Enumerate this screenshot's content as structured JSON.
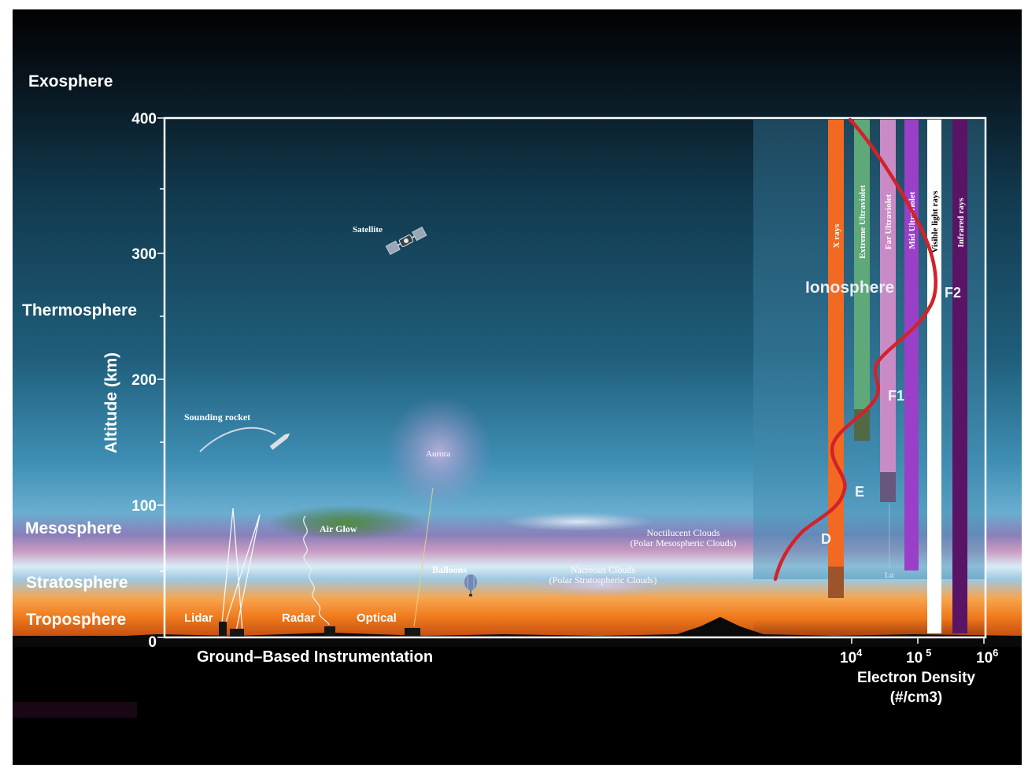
{
  "layers": [
    {
      "name": "Exosphere",
      "color": "#ffffff"
    },
    {
      "name": "Thermosphere",
      "color": "#ffffff"
    },
    {
      "name": "Mesosphere",
      "color": "#ffffff"
    },
    {
      "name": "Stratosphere",
      "color": "#ffffff"
    },
    {
      "name": "Troposphere",
      "color": "#ffffff"
    }
  ],
  "altitude_axis": {
    "label": "Altitude (km)",
    "ticks": [
      "400",
      "300",
      "200",
      "100",
      "0"
    ]
  },
  "density_axis": {
    "label_line1": "Electron Density",
    "label_line2": "(#/cm3)",
    "ticks": [
      {
        "base": "10",
        "exp": "4"
      },
      {
        "base": "10",
        "exp": "5"
      },
      {
        "base": "10",
        "exp": "6"
      }
    ]
  },
  "ground_title": "Ground–Based Instrumentation",
  "ground_instruments": [
    "Lidar",
    "Radar",
    "Optical"
  ],
  "phenomena": {
    "satellite": "Satellite",
    "sounding_rocket": "Sounding rocket",
    "aurora": "Aurora",
    "air_glow": "Air Glow",
    "balloons": "Balloons",
    "noctilucent_line1": "Noctilucent Clouds",
    "noctilucent_line2": "(Polar Mesospheric Clouds)",
    "nacreous_line1": "Nacreous Clouds",
    "nacreous_line2": "(Polar Stratospheric Clouds)"
  },
  "radiation_bands": [
    {
      "label": "X rays",
      "color": "#f26a21"
    },
    {
      "label": "Extreme Ultraviolet",
      "color": "#5fa87a"
    },
    {
      "label": "Far Ultraviolet",
      "color": "#c88bc6"
    },
    {
      "label": "Mid Ultraviolet",
      "color": "#9a3fc8"
    },
    {
      "label": "Visible light rays",
      "color": "#ffffff"
    },
    {
      "label": "Infrared rays",
      "color": "#5a1466"
    }
  ],
  "lyman_label": "Lα",
  "ionosphere_label": "Ionosphere",
  "ionosphere_regions": [
    "D",
    "E",
    "F1",
    "F2"
  ],
  "profile_color": "#d2222a"
}
